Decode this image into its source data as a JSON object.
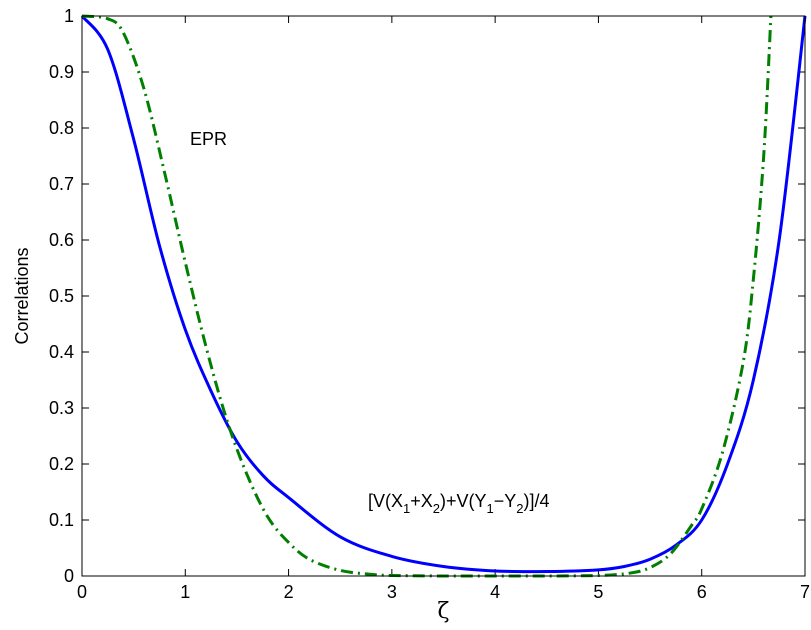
{
  "chart_data": {
    "type": "line",
    "xlabel": "ζ",
    "ylabel": "Correlations",
    "xlim": [
      0,
      7
    ],
    "ylim": [
      0,
      1
    ],
    "xticks": [
      "0",
      "1",
      "2",
      "3",
      "4",
      "5",
      "6",
      "7"
    ],
    "yticks": [
      "0",
      "0.1",
      "0.2",
      "0.3",
      "0.4",
      "0.5",
      "0.6",
      "0.7",
      "0.8",
      "0.9",
      "1"
    ],
    "grid": false,
    "annotations": {
      "epr": "EPR",
      "variance": {
        "parts": [
          "[V(X",
          "1",
          "+X",
          "2",
          ")+V(Y",
          "1",
          "−Y",
          "2",
          ")]/4"
        ]
      }
    },
    "series": [
      {
        "color": "#0000ff",
        "style": "solid",
        "x": [
          0,
          0.25,
          0.5,
          0.75,
          1.0,
          1.25,
          1.5,
          1.75,
          2.0,
          2.5,
          3.0,
          3.5,
          4.0,
          4.5,
          5.0,
          5.25,
          5.5,
          5.75,
          6.0,
          6.25,
          6.5,
          6.75,
          7.0
        ],
        "y": [
          1.0,
          0.94,
          0.78,
          0.59,
          0.44,
          0.33,
          0.24,
          0.18,
          0.14,
          0.07,
          0.035,
          0.017,
          0.009,
          0.008,
          0.011,
          0.017,
          0.03,
          0.055,
          0.1,
          0.2,
          0.35,
          0.6,
          1.0
        ]
      },
      {
        "color": "#007f00",
        "style": "dashdot",
        "x": [
          0,
          0.25,
          0.4,
          0.6,
          0.8,
          1.0,
          1.2,
          1.4,
          1.6,
          1.8,
          2.0,
          2.2,
          2.5,
          2.8,
          3.0,
          3.5,
          4.0,
          4.5,
          5.0,
          5.3,
          5.5,
          5.7,
          5.9,
          6.0,
          6.2,
          6.4,
          6.5,
          6.6,
          6.67
        ],
        "y": [
          1.0,
          0.995,
          0.97,
          0.87,
          0.72,
          0.56,
          0.41,
          0.28,
          0.18,
          0.105,
          0.06,
          0.03,
          0.01,
          0.003,
          0.001,
          0.0,
          0.0,
          0.0,
          0.001,
          0.005,
          0.015,
          0.04,
          0.09,
          0.12,
          0.22,
          0.38,
          0.53,
          0.75,
          1.0
        ]
      }
    ]
  },
  "colors": {
    "axis": "#000000",
    "blue": "#0000ff",
    "green": "#007f00"
  }
}
